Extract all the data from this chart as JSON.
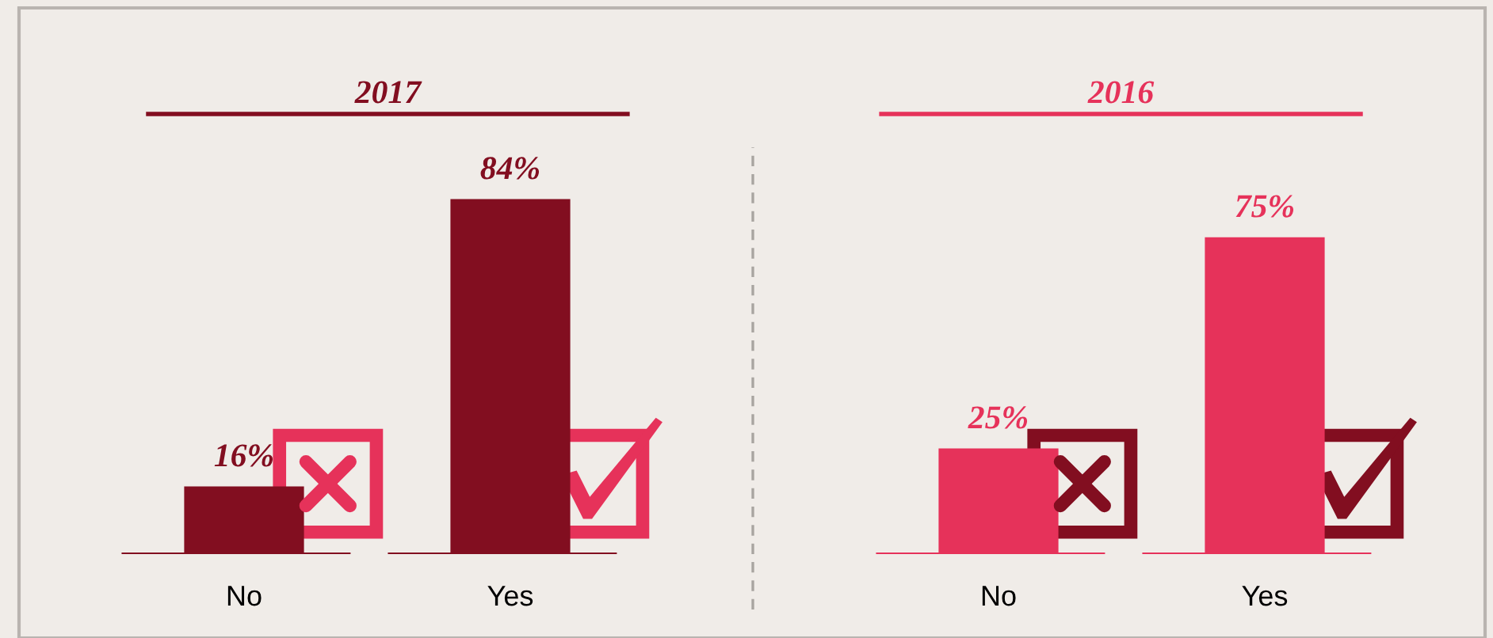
{
  "chart_data": [
    {
      "type": "bar",
      "title": "2017",
      "categories": [
        "No",
        "Yes"
      ],
      "values": [
        16,
        84
      ],
      "value_labels": [
        "16%",
        "84%"
      ],
      "color": "#820e20"
    },
    {
      "type": "bar",
      "title": "2016",
      "categories": [
        "No",
        "Yes"
      ],
      "values": [
        25,
        75
      ],
      "value_labels": [
        "25%",
        "75%"
      ],
      "color": "#e6325a"
    }
  ]
}
